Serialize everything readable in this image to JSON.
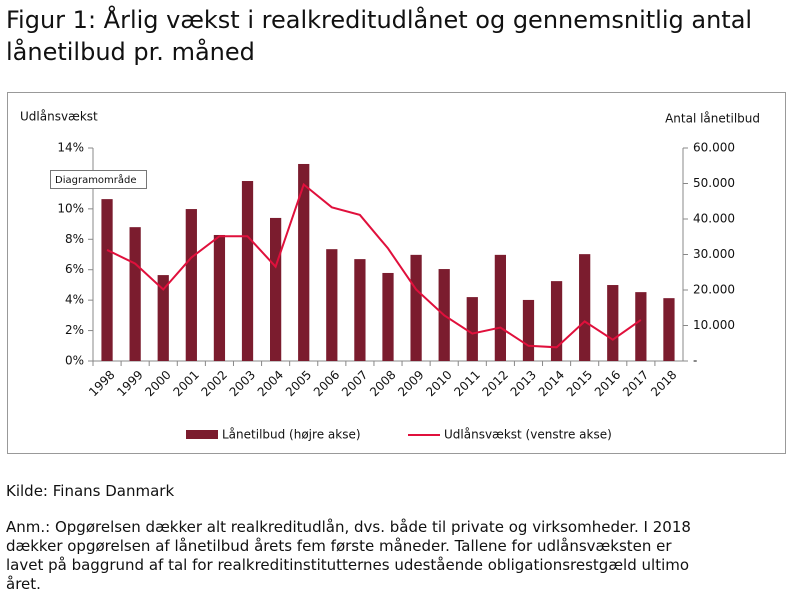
{
  "chart_data": {
    "type": "bar-line",
    "title": "Figur 1: Årlig vækst i realkreditudlånet og gennemsnitlig antal lånetilbud pr. måned",
    "y_label": "Udlånsvækst",
    "y2_label": "Antal lånetilbud",
    "categories": [
      "1998",
      "1999",
      "2000",
      "2001",
      "2002",
      "2003",
      "2004",
      "2005",
      "2006",
      "2007",
      "2008",
      "2009",
      "2010",
      "2011",
      "2012",
      "2013",
      "2014",
      "2015",
      "2016",
      "2017",
      "2018"
    ],
    "series": [
      {
        "name": "Lånetilbud (højre akse)",
        "type": "bar",
        "axis": "y2",
        "color": "#7b1c2e",
        "values": [
          45600,
          37700,
          24200,
          42800,
          35500,
          50700,
          40300,
          55500,
          31500,
          28700,
          24800,
          29900,
          25900,
          18000,
          29900,
          17200,
          22500,
          30100,
          21400,
          19400,
          17700
        ]
      },
      {
        "name": "Udlånsvækst (venstre akse)",
        "type": "line",
        "color": "#e0103c",
        "values": [
          7.3,
          6.4,
          4.7,
          6.8,
          8.2,
          8.2,
          6.2,
          11.6,
          10.1,
          9.6,
          7.4,
          4.7,
          3.0,
          1.8,
          2.2,
          1.0,
          0.9,
          2.6,
          1.4,
          2.7,
          null
        ]
      }
    ],
    "ylim": [
      0,
      14
    ],
    "yticks": [
      {
        "value": 0,
        "label": "0%"
      },
      {
        "value": 2,
        "label": "2%"
      },
      {
        "value": 4,
        "label": "4%"
      },
      {
        "value": 6,
        "label": "6%"
      },
      {
        "value": 8,
        "label": "8%"
      },
      {
        "value": 10,
        "label": "10%"
      },
      {
        "value": 12,
        "label": "12%"
      },
      {
        "value": 14,
        "label": "14%"
      }
    ],
    "y2lim": [
      0,
      60000
    ],
    "y2ticks": [
      {
        "value": 0,
        "label": "-"
      },
      {
        "value": 10000,
        "label": "10.000"
      },
      {
        "value": 20000,
        "label": "20.000"
      },
      {
        "value": 30000,
        "label": "30.000"
      },
      {
        "value": 40000,
        "label": "40.000"
      },
      {
        "value": 50000,
        "label": "50.000"
      },
      {
        "value": 60000,
        "label": "60.000"
      }
    ],
    "grid": false,
    "legend": "bottom",
    "tooltip": "Diagramområde"
  },
  "source": "Kilde: Finans Danmark",
  "note": [
    "Anm.: Opgørelsen dækker alt realkreditudlån, dvs. både til private og virksomheder. I 2018",
    "dækker opgørelsen af lånetilbud årets fem første måneder. Tallene for udlånsvæksten er",
    "lavet på baggrund af tal for realkreditinstitutternes udestående obligationsrestgæld ultimo",
    "året."
  ]
}
